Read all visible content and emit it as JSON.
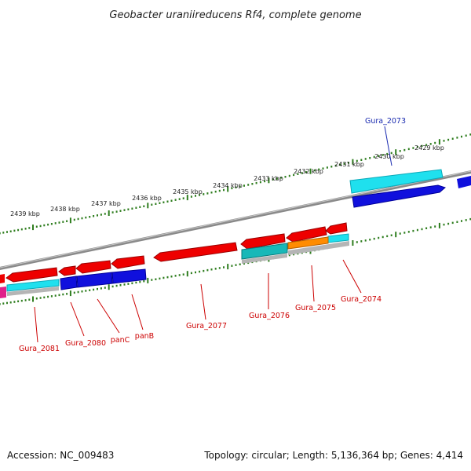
{
  "title": "Geobacter uraniireducens Rf4, complete genome",
  "footer": {
    "accession": "Accession: NC_009483",
    "summary": "Topology: circular; Length: 5,136,364 bp; Genes: 4,414"
  },
  "colors": {
    "backbone": "#8a8a8a",
    "tick": "#2e7d1e",
    "red": "#ee0000",
    "blue": "#1010dd",
    "cyan": "#1fe0ee",
    "teal": "#18b8b8",
    "orange": "#ff8c00",
    "gray": "#b5b5b5",
    "magenta": "#e0208a",
    "label_red": "#cc0000",
    "label_blue": "#1a2bb0"
  },
  "ticks": [
    "2439 kbp",
    "2438 kbp",
    "2437 kbp",
    "2436 kbp",
    "2435 kbp",
    "2434 kbp",
    "2433 kbp",
    "2432 kbp",
    "2431 kbp",
    "2430 kbp",
    "2429 kbp"
  ],
  "labels": [
    {
      "name": "Gura_2073",
      "color": "blue"
    },
    {
      "name": "Gura_2074",
      "color": "red"
    },
    {
      "name": "Gura_2075",
      "color": "red"
    },
    {
      "name": "Gura_2076",
      "color": "red"
    },
    {
      "name": "Gura_2077",
      "color": "red"
    },
    {
      "name": "panB",
      "color": "red"
    },
    {
      "name": "panC",
      "color": "red"
    },
    {
      "name": "Gura_2080",
      "color": "red"
    },
    {
      "name": "Gura_2081",
      "color": "red"
    }
  ]
}
